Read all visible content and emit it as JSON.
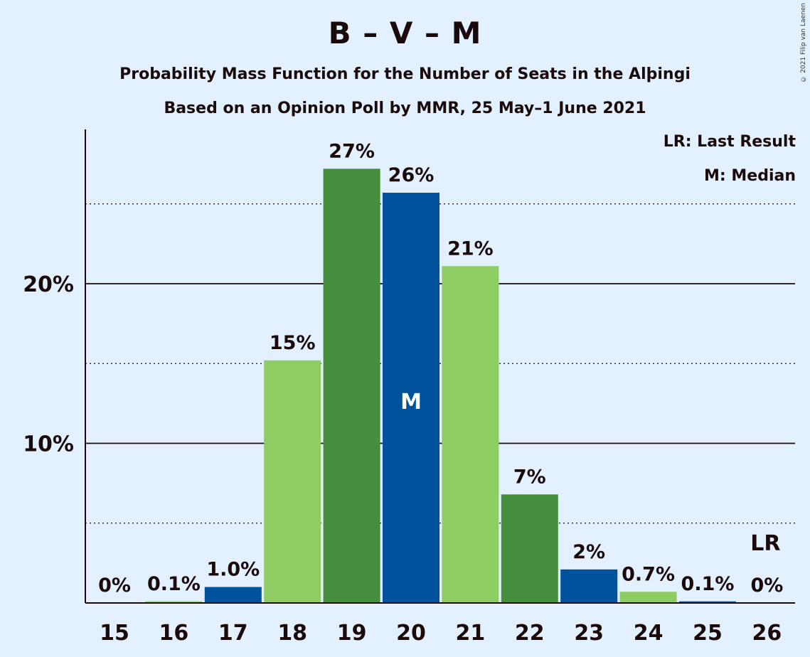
{
  "title": "B – V – M",
  "subtitle": "Probability Mass Function for the Number of Seats in the Alþingi",
  "subtitle2": "Based on an Opinion Poll by MMR, 25 May–1 June 2021",
  "copyright": "© 2021 Filip van Laenen",
  "legend": {
    "last_result": "LR: Last Result",
    "median": "M: Median"
  },
  "colors": {
    "background": "#E2F0FF",
    "blue": "#00529C",
    "dark_green": "#458E3E",
    "light_green": "#8ECC64"
  },
  "chart_data": {
    "type": "bar",
    "categories": [
      15,
      16,
      17,
      18,
      19,
      20,
      21,
      22,
      23,
      24,
      25,
      26
    ],
    "values": [
      0,
      0.1,
      1.0,
      15.2,
      27.2,
      25.7,
      21.1,
      6.8,
      2.1,
      0.7,
      0.1,
      0
    ],
    "labels": [
      "0%",
      "0.1%",
      "1.0%",
      "15%",
      "27%",
      "26%",
      "21%",
      "7%",
      "2%",
      "0.7%",
      "0.1%",
      "0%"
    ],
    "bar_colors": [
      "blue",
      "light_green",
      "blue",
      "light_green",
      "dark_green",
      "blue",
      "light_green",
      "dark_green",
      "blue",
      "light_green",
      "blue",
      "light_green"
    ],
    "ylim": [
      0,
      30
    ],
    "y_ticks": [
      10,
      20
    ],
    "y_tick_labels": [
      "10%",
      "20%"
    ],
    "dotted_gridlines": [
      5,
      15,
      25
    ],
    "median": 20,
    "median_label": "M",
    "last_result": 26,
    "last_result_label": "LR",
    "xlabel": "",
    "ylabel": ""
  }
}
